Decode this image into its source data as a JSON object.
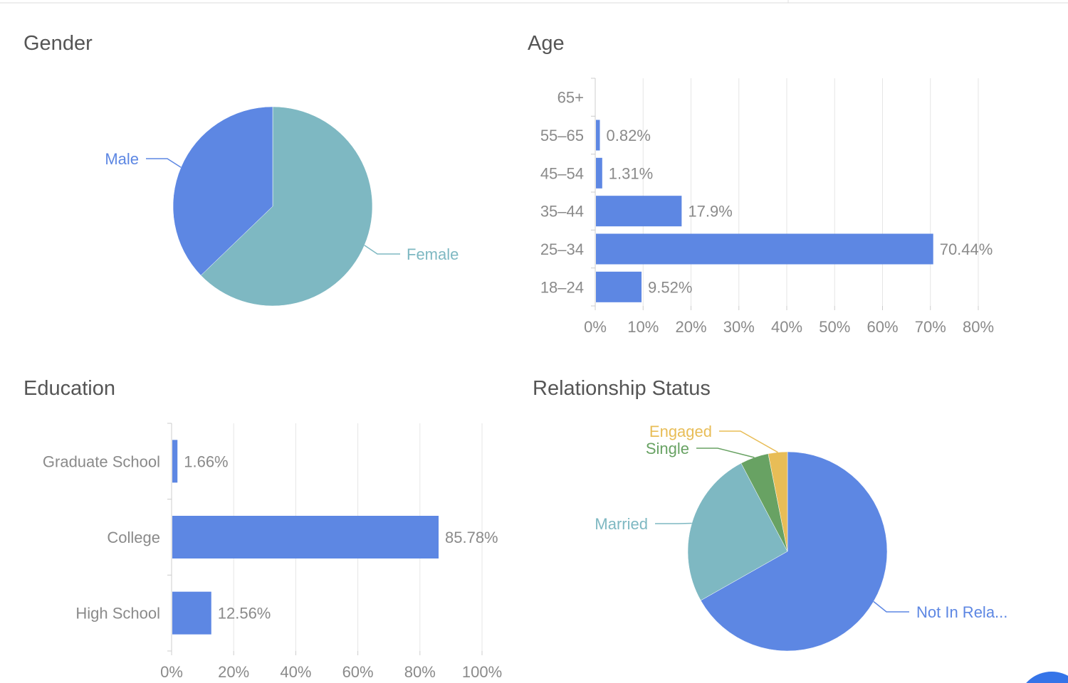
{
  "colors": {
    "blue": "#5d87e3",
    "teal": "#7eb8c2",
    "green": "#68a263",
    "yellow": "#e8bd57",
    "fab": "#3574e8"
  },
  "chart_data": [
    {
      "type": "pie",
      "title": "Gender",
      "slices": [
        {
          "name": "Female",
          "value": 62.8,
          "color": "#7eb8c2"
        },
        {
          "name": "Male",
          "value": 37.2,
          "color": "#5d87e3"
        }
      ]
    },
    {
      "type": "bar",
      "orientation": "horizontal",
      "title": "Age",
      "categories": [
        "18–24",
        "25–34",
        "35–44",
        "45–54",
        "55–65",
        "65+"
      ],
      "values": [
        9.52,
        70.44,
        17.9,
        1.31,
        0.82,
        0
      ],
      "data_labels": [
        "9.52%",
        "70.44%",
        "17.9%",
        "1.31%",
        "0.82%",
        ""
      ],
      "xlim": [
        0,
        80
      ],
      "xticks": [
        "0%",
        "10%",
        "20%",
        "30%",
        "40%",
        "50%",
        "60%",
        "70%",
        "80%"
      ],
      "grid": true,
      "color": "#5d87e3"
    },
    {
      "type": "bar",
      "orientation": "horizontal",
      "title": "Education",
      "categories": [
        "High School",
        "College",
        "Graduate School"
      ],
      "values": [
        12.56,
        85.78,
        1.66
      ],
      "data_labels": [
        "12.56%",
        "85.78%",
        "1.66%"
      ],
      "xlim": [
        0,
        100
      ],
      "xticks": [
        "0%",
        "20%",
        "40%",
        "60%",
        "80%",
        "100%"
      ],
      "grid": true,
      "color": "#5d87e3"
    },
    {
      "type": "pie",
      "title": "Relationship Status",
      "slices": [
        {
          "name": "Not In Rela...",
          "value": 66.8,
          "color": "#5d87e3"
        },
        {
          "name": "Married",
          "value": 25.5,
          "color": "#7eb8c2"
        },
        {
          "name": "Single",
          "value": 4.6,
          "color": "#68a263"
        },
        {
          "name": "Engaged",
          "value": 3.1,
          "color": "#e8bd57"
        }
      ]
    }
  ]
}
